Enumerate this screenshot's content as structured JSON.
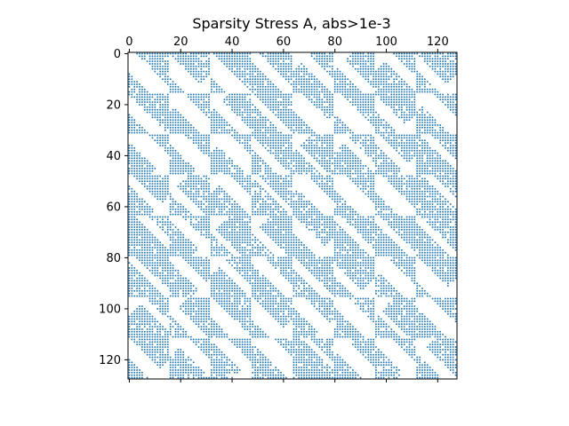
{
  "chart_data": {
    "type": "heatmap",
    "title": "Sparsity Stress A, abs>1e-3",
    "xlabel": "",
    "ylabel": "",
    "matrix_size": 128,
    "block_size": 16,
    "xlim": [
      0,
      127
    ],
    "ylim": [
      0,
      127
    ],
    "x_ticks": [
      0,
      20,
      40,
      60,
      80,
      100,
      120
    ],
    "y_ticks": [
      0,
      20,
      40,
      60,
      80,
      100,
      120
    ],
    "x_axis_position": "top",
    "y_axis_inverted": true,
    "grid": false,
    "marker_color": "#1f77b4",
    "pattern_seed": 7,
    "fill_density": 0.9
  }
}
